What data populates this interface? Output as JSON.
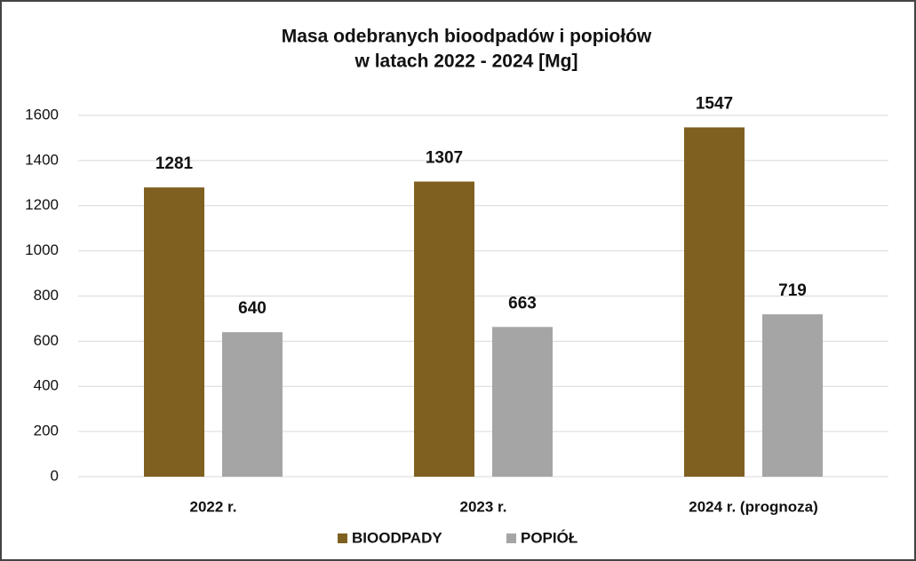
{
  "chart_data": {
    "type": "bar",
    "title": [
      "Masa odebranych bioodpadów i popiołów",
      "w latach 2022 - 2024 [Mg]"
    ],
    "categories": [
      "2022 r.",
      "2023 r.",
      "2024 r. (prognoza)"
    ],
    "series": [
      {
        "name": "BIOODPADY",
        "color": "#7f6021",
        "values": [
          1281,
          1307,
          1547
        ]
      },
      {
        "name": "POPIÓŁ",
        "color": "#a5a5a5",
        "values": [
          640,
          663,
          719
        ]
      }
    ],
    "ylim": [
      0,
      1600
    ],
    "yticks": [
      0,
      200,
      400,
      600,
      800,
      1000,
      1200,
      1400,
      1600
    ],
    "grid": true,
    "legend": "bottom"
  }
}
